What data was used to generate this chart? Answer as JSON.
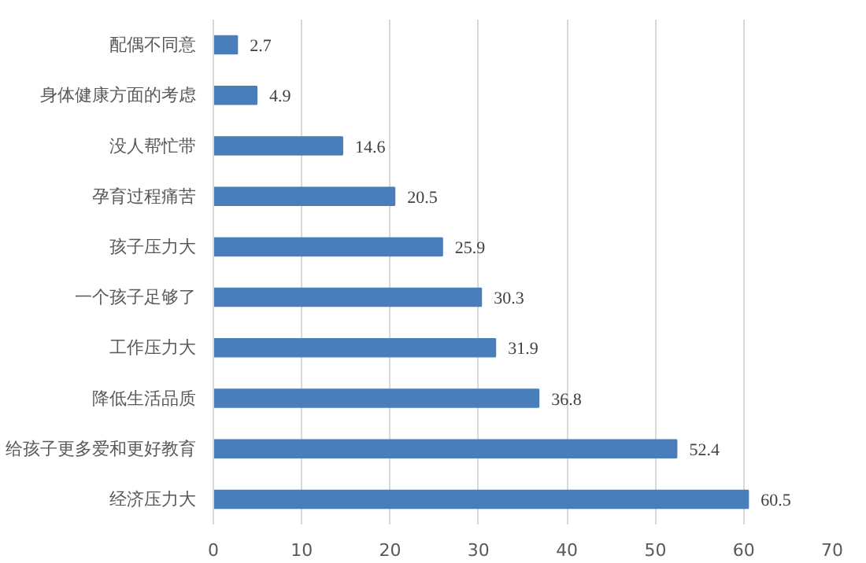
{
  "chart_data": {
    "type": "bar",
    "orientation": "horizontal",
    "categories": [
      "配偶不同意",
      "身体健康方面的考虑",
      "没人帮忙带",
      "孕育过程痛苦",
      "孩子压力大",
      "一个孩子足够了",
      "工作压力大",
      "降低生活品质",
      "给孩子更多爱和更好教育",
      "经济压力大"
    ],
    "values": [
      2.7,
      4.9,
      14.6,
      20.5,
      25.9,
      30.3,
      31.9,
      36.8,
      52.4,
      60.5
    ],
    "color": "#4a7ebb",
    "xlim": [
      0,
      70
    ],
    "xticks": [
      0,
      10,
      20,
      30,
      40,
      50,
      60,
      70
    ],
    "grid": "x",
    "data_labels": true
  }
}
